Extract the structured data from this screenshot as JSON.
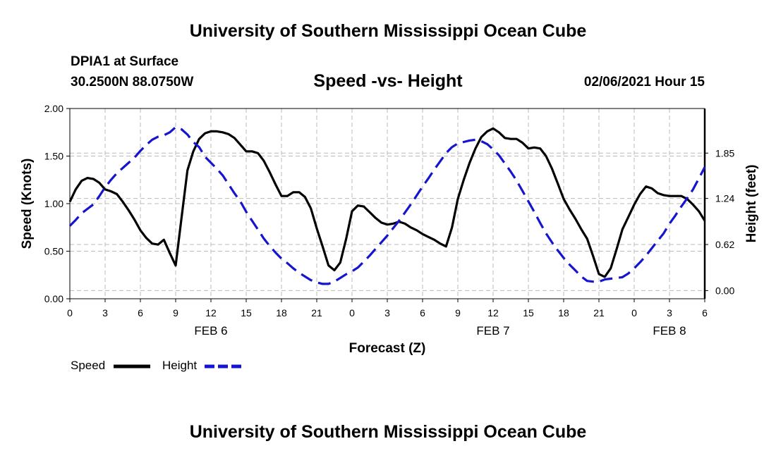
{
  "header": {
    "title": "University of Southern Mississippi Ocean Cube",
    "station": "DPIA1 at Surface",
    "coords": "30.2500N 88.0750W",
    "subtitle": "Speed -vs- Height",
    "datetime": "02/06/2021 Hour 15"
  },
  "footer": {
    "title": "University of Southern Mississippi Ocean Cube"
  },
  "chart_data": {
    "type": "line",
    "title": "Speed -vs- Height",
    "xlabel": "Forecast (Z)",
    "ylabel_left": "Speed (Knots)",
    "ylabel_right": "Height (feet)",
    "xlim": [
      0,
      54
    ],
    "ylim_left": [
      0,
      2.0
    ],
    "ylim_right": [
      -0.11,
      2.45
    ],
    "grid": true,
    "x_tick_labels": [
      "0",
      "3",
      "6",
      "9",
      "12",
      "15",
      "18",
      "21",
      "0",
      "3",
      "6",
      "9",
      "12",
      "15",
      "18",
      "21",
      "0",
      "3",
      "6"
    ],
    "y_ticks_left": [
      "0.00",
      "0.50",
      "1.00",
      "1.50",
      "2.00"
    ],
    "y_ticks_right": [
      "0.00",
      "0.62",
      "1.24",
      "1.85"
    ],
    "date_labels": [
      {
        "label": "FEB 6",
        "hour": 12
      },
      {
        "label": "FEB 7",
        "hour": 36
      },
      {
        "label": "FEB 8",
        "hour": 51
      }
    ],
    "legend": [
      {
        "name": "Speed",
        "color": "#000000",
        "style": "solid"
      },
      {
        "name": "Height",
        "color": "#1515d0",
        "style": "dashed"
      }
    ],
    "series": [
      {
        "name": "Speed",
        "axis": "left",
        "color": "#000000",
        "x": [
          0,
          0.5,
          1,
          1.5,
          2,
          2.5,
          3,
          3.5,
          4,
          4.5,
          5,
          5.5,
          6,
          6.5,
          7,
          7.5,
          8,
          8.5,
          9,
          9.5,
          10,
          10.5,
          11,
          11.5,
          12,
          12.5,
          13,
          13.5,
          14,
          14.5,
          15,
          15.5,
          16,
          16.5,
          17,
          17.5,
          18,
          18.5,
          19,
          19.5,
          20,
          20.5,
          21,
          21.5,
          22,
          22.5,
          23,
          23.5,
          24,
          24.5,
          25,
          25.5,
          26,
          26.5,
          27,
          27.5,
          28,
          28.5,
          29,
          29.5,
          30,
          30.5,
          31,
          31.5,
          32,
          32.5,
          33,
          33.5,
          34,
          34.5,
          35,
          35.5,
          36,
          36.5,
          37,
          37.5,
          38,
          38.5,
          39,
          39.5,
          40,
          40.5,
          41,
          41.5,
          42,
          42.5,
          43,
          43.5,
          44,
          44.5,
          45,
          45.5,
          46,
          46.5,
          47,
          47.5,
          48,
          48.5,
          49,
          49.5,
          50,
          50.5,
          51,
          51.5,
          52,
          52.5,
          53,
          53.5,
          54
        ],
        "values": [
          1.02,
          1.15,
          1.24,
          1.27,
          1.26,
          1.22,
          1.15,
          1.13,
          1.1,
          1.02,
          0.93,
          0.83,
          0.72,
          0.64,
          0.58,
          0.57,
          0.62,
          0.48,
          0.35,
          0.85,
          1.35,
          1.55,
          1.68,
          1.74,
          1.76,
          1.76,
          1.75,
          1.73,
          1.69,
          1.62,
          1.55,
          1.55,
          1.53,
          1.45,
          1.33,
          1.2,
          1.08,
          1.08,
          1.12,
          1.12,
          1.07,
          0.95,
          0.74,
          0.55,
          0.35,
          0.3,
          0.38,
          0.63,
          0.92,
          0.98,
          0.97,
          0.91,
          0.85,
          0.8,
          0.78,
          0.79,
          0.81,
          0.79,
          0.75,
          0.72,
          0.68,
          0.65,
          0.62,
          0.58,
          0.55,
          0.75,
          1.05,
          1.25,
          1.43,
          1.58,
          1.7,
          1.76,
          1.79,
          1.75,
          1.69,
          1.68,
          1.68,
          1.64,
          1.58,
          1.59,
          1.58,
          1.5,
          1.37,
          1.21,
          1.05,
          0.94,
          0.84,
          0.73,
          0.63,
          0.45,
          0.26,
          0.23,
          0.32,
          0.52,
          0.73,
          0.86,
          0.99,
          1.1,
          1.18,
          1.16,
          1.11,
          1.09,
          1.08,
          1.08,
          1.08,
          1.05,
          0.99,
          0.92,
          0.82
        ]
      },
      {
        "name": "Height",
        "axis": "right",
        "color": "#1515d0",
        "x": [
          0,
          0.5,
          1,
          1.5,
          2,
          2.5,
          3,
          3.5,
          4,
          4.5,
          5,
          5.5,
          6,
          6.5,
          7,
          7.5,
          8,
          8.5,
          9,
          9.5,
          10,
          10.5,
          11,
          11.5,
          12,
          12.5,
          13,
          13.5,
          14,
          14.5,
          15,
          15.5,
          16,
          16.5,
          17,
          17.5,
          18,
          18.5,
          19,
          19.5,
          20,
          20.5,
          21,
          21.5,
          22,
          22.5,
          23,
          23.5,
          24,
          24.5,
          25,
          25.5,
          26,
          26.5,
          27,
          27.5,
          28,
          28.5,
          29,
          29.5,
          30,
          30.5,
          31,
          31.5,
          32,
          32.5,
          33,
          33.5,
          34,
          34.5,
          35,
          35.5,
          36,
          36.5,
          37,
          37.5,
          38,
          38.5,
          39,
          39.5,
          40,
          40.5,
          41,
          41.5,
          42,
          42.5,
          43,
          43.5,
          44,
          44.5,
          45,
          45.5,
          46,
          46.5,
          47,
          47.5,
          48,
          48.5,
          49,
          49.5,
          50,
          50.5,
          51,
          51.5,
          52,
          52.5,
          53,
          53.5,
          54
        ],
        "values": [
          0.87,
          0.95,
          1.04,
          1.1,
          1.16,
          1.27,
          1.39,
          1.49,
          1.58,
          1.65,
          1.72,
          1.79,
          1.88,
          1.96,
          2.03,
          2.07,
          2.09,
          2.13,
          2.2,
          2.17,
          2.1,
          2.0,
          1.93,
          1.8,
          1.72,
          1.64,
          1.55,
          1.43,
          1.31,
          1.2,
          1.06,
          0.94,
          0.82,
          0.7,
          0.6,
          0.51,
          0.43,
          0.37,
          0.3,
          0.24,
          0.19,
          0.14,
          0.11,
          0.09,
          0.09,
          0.12,
          0.17,
          0.22,
          0.26,
          0.31,
          0.39,
          0.47,
          0.56,
          0.65,
          0.74,
          0.84,
          0.94,
          1.05,
          1.16,
          1.28,
          1.4,
          1.51,
          1.63,
          1.74,
          1.85,
          1.93,
          1.98,
          2.0,
          2.02,
          2.03,
          2.01,
          1.97,
          1.9,
          1.82,
          1.71,
          1.6,
          1.48,
          1.34,
          1.2,
          1.06,
          0.91,
          0.77,
          0.65,
          0.54,
          0.44,
          0.35,
          0.27,
          0.19,
          0.13,
          0.12,
          0.12,
          0.15,
          0.16,
          0.17,
          0.18,
          0.23,
          0.3,
          0.38,
          0.47,
          0.57,
          0.67,
          0.77,
          0.9,
          1.01,
          1.13,
          1.24,
          1.36,
          1.51,
          1.66
        ]
      }
    ]
  }
}
